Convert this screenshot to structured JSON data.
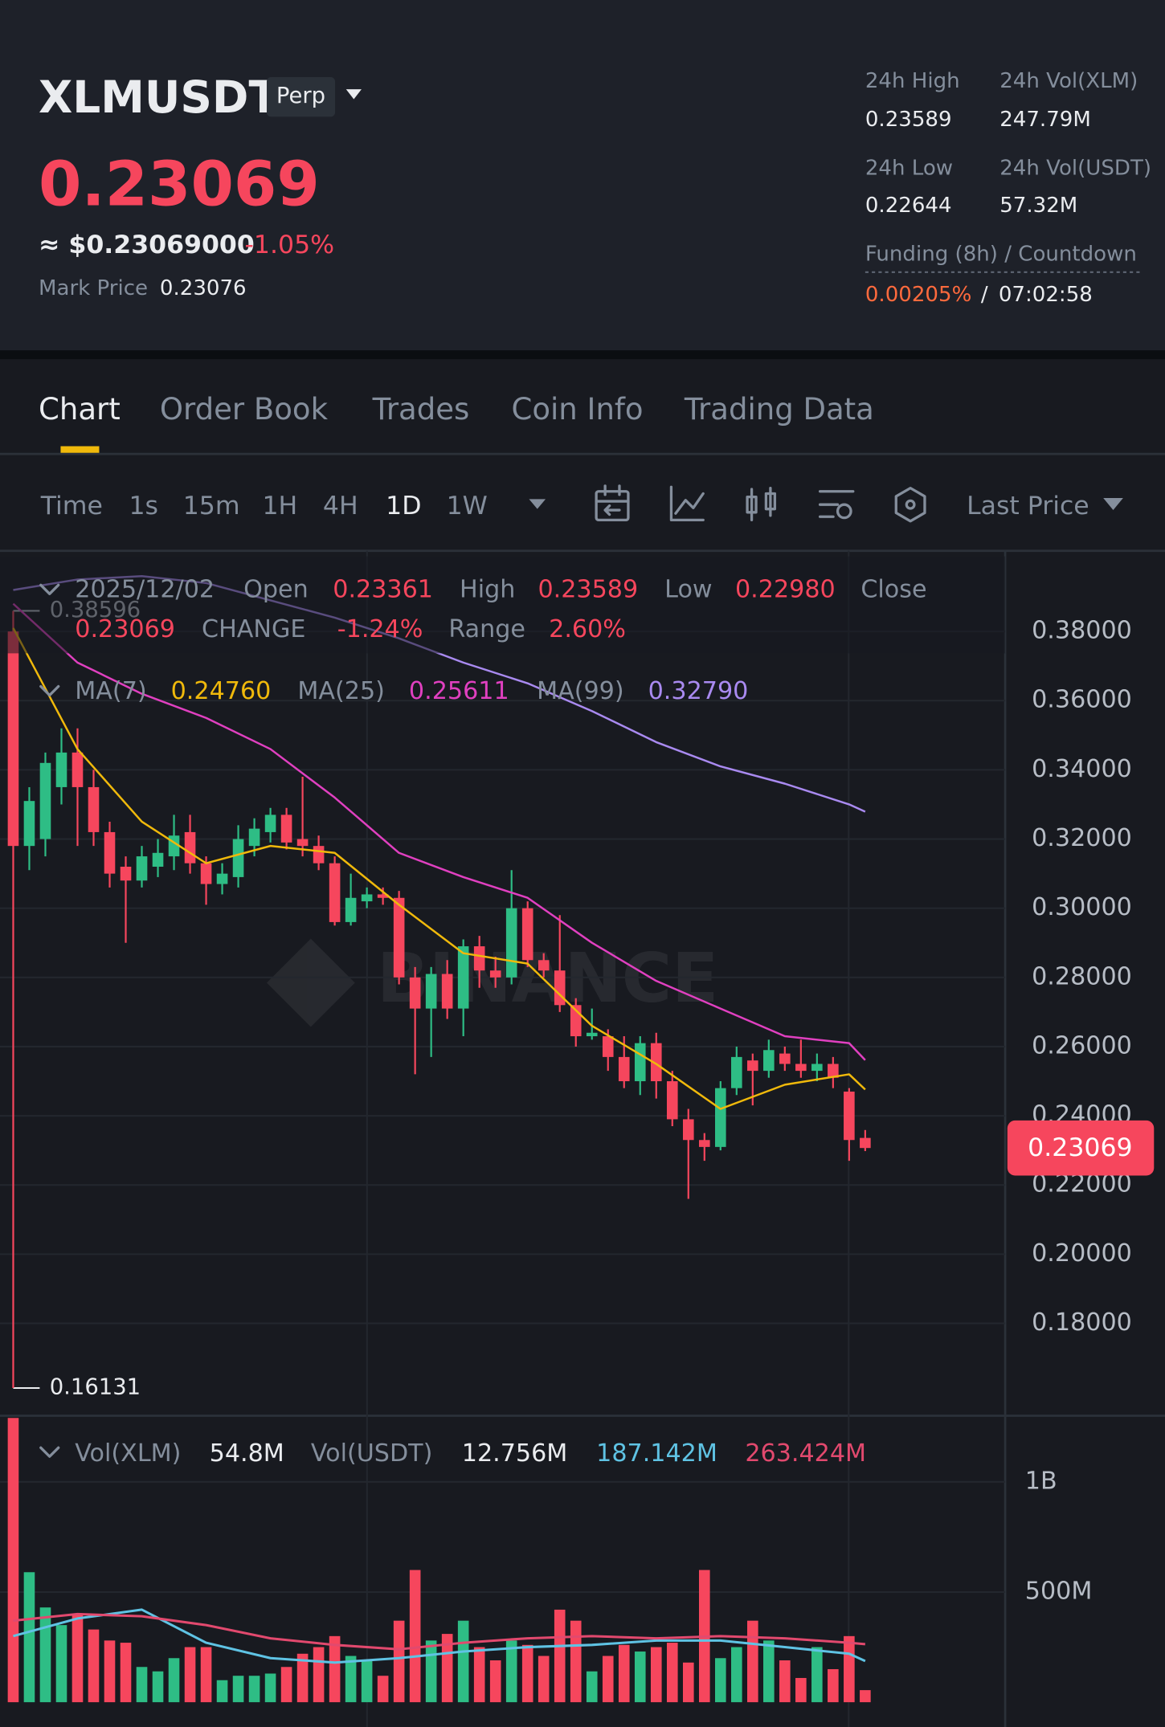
{
  "header": {
    "symbol": "XLMUSDT",
    "contract": "Perp",
    "price": "0.23069",
    "usd_price": "≈ $0.23069000",
    "change": "-1.05%",
    "mark_price_label": "Mark Price",
    "mark_price": "0.23076",
    "stats": [
      {
        "label": "24h High",
        "value": "0.23589"
      },
      {
        "label": "24h Vol(XLM)",
        "value": "247.79M"
      },
      {
        "label": "24h Low",
        "value": "0.22644"
      },
      {
        "label": "24h Vol(USDT)",
        "value": "57.32M"
      }
    ],
    "funding_label": "Funding (8h) / Countdown",
    "funding_rate": "0.00205%",
    "funding_sep": "/",
    "countdown": "07:02:58"
  },
  "tabs": [
    "Chart",
    "Order Book",
    "Trades",
    "Coin Info",
    "Trading Data"
  ],
  "toolbar": {
    "label": "Time",
    "intervals": [
      "1s",
      "15m",
      "1H",
      "4H",
      "1D",
      "1W"
    ],
    "price_type": "Last Price"
  },
  "ohlc_info": {
    "date": "2025/12/02",
    "open_label": "Open",
    "open": "0.23361",
    "high_label": "High",
    "high": "0.23589",
    "low_label": "Low",
    "low": "0.22980",
    "close_label": "Close",
    "close": "0.23069",
    "change_label": "CHANGE",
    "change": "-1.24%",
    "range_label": "Range",
    "range": "2.60%"
  },
  "watermark": "BINANCE",
  "chart_data": {
    "type": "candlestick",
    "up_color": "#2ebd85",
    "down_color": "#f6465d",
    "ylim": [
      0.1533,
      0.4017
    ],
    "yticks": [
      {
        "value": 0.38,
        "label": "0.38000"
      },
      {
        "value": 0.36,
        "label": "0.36000"
      },
      {
        "value": 0.34,
        "label": "0.34000"
      },
      {
        "value": 0.32,
        "label": "0.32000"
      },
      {
        "value": 0.3,
        "label": "0.30000"
      },
      {
        "value": 0.28,
        "label": "0.28000"
      },
      {
        "value": 0.26,
        "label": "0.26000"
      },
      {
        "value": 0.24,
        "label": "0.24000"
      },
      {
        "value": 0.22,
        "label": "0.22000"
      },
      {
        "value": 0.2,
        "label": "0.20000"
      },
      {
        "value": 0.18,
        "label": "0.18000"
      }
    ],
    "grid": true,
    "candles": [
      [
        0.38,
        0.38596,
        0.16131,
        0.318
      ],
      [
        0.318,
        0.335,
        0.311,
        0.331
      ],
      [
        0.32,
        0.345,
        0.315,
        0.342
      ],
      [
        0.335,
        0.352,
        0.33,
        0.345
      ],
      [
        0.345,
        0.352,
        0.318,
        0.335
      ],
      [
        0.335,
        0.34,
        0.318,
        0.322
      ],
      [
        0.322,
        0.325,
        0.306,
        0.31
      ],
      [
        0.312,
        0.315,
        0.29,
        0.308
      ],
      [
        0.308,
        0.318,
        0.306,
        0.315
      ],
      [
        0.312,
        0.32,
        0.309,
        0.316
      ],
      [
        0.315,
        0.327,
        0.311,
        0.321
      ],
      [
        0.322,
        0.327,
        0.31,
        0.313
      ],
      [
        0.313,
        0.315,
        0.301,
        0.307
      ],
      [
        0.307,
        0.313,
        0.304,
        0.31
      ],
      [
        0.309,
        0.324,
        0.306,
        0.32
      ],
      [
        0.318,
        0.326,
        0.315,
        0.323
      ],
      [
        0.322,
        0.329,
        0.319,
        0.327
      ],
      [
        0.327,
        0.329,
        0.317,
        0.319
      ],
      [
        0.32,
        0.338,
        0.315,
        0.318
      ],
      [
        0.318,
        0.321,
        0.311,
        0.313
      ],
      [
        0.313,
        0.315,
        0.295,
        0.296
      ],
      [
        0.296,
        0.31,
        0.295,
        0.303
      ],
      [
        0.302,
        0.306,
        0.3,
        0.304
      ],
      [
        0.304,
        0.306,
        0.301,
        0.303
      ],
      [
        0.303,
        0.305,
        0.278,
        0.28
      ],
      [
        0.28,
        0.283,
        0.252,
        0.271
      ],
      [
        0.271,
        0.283,
        0.257,
        0.281
      ],
      [
        0.281,
        0.285,
        0.268,
        0.271
      ],
      [
        0.271,
        0.291,
        0.263,
        0.289
      ],
      [
        0.289,
        0.292,
        0.277,
        0.282
      ],
      [
        0.282,
        0.286,
        0.277,
        0.28
      ],
      [
        0.28,
        0.311,
        0.278,
        0.3
      ],
      [
        0.3,
        0.302,
        0.283,
        0.285
      ],
      [
        0.285,
        0.287,
        0.28,
        0.282
      ],
      [
        0.282,
        0.298,
        0.27,
        0.272
      ],
      [
        0.272,
        0.274,
        0.26,
        0.263
      ],
      [
        0.263,
        0.271,
        0.262,
        0.264
      ],
      [
        0.263,
        0.265,
        0.253,
        0.257
      ],
      [
        0.257,
        0.263,
        0.248,
        0.25
      ],
      [
        0.25,
        0.263,
        0.246,
        0.261
      ],
      [
        0.261,
        0.264,
        0.245,
        0.25
      ],
      [
        0.25,
        0.253,
        0.237,
        0.239
      ],
      [
        0.239,
        0.242,
        0.216,
        0.233
      ],
      [
        0.233,
        0.235,
        0.227,
        0.231
      ],
      [
        0.231,
        0.25,
        0.23,
        0.248
      ],
      [
        0.248,
        0.26,
        0.246,
        0.257
      ],
      [
        0.256,
        0.258,
        0.243,
        0.253
      ],
      [
        0.253,
        0.262,
        0.251,
        0.259
      ],
      [
        0.258,
        0.26,
        0.253,
        0.255
      ],
      [
        0.255,
        0.262,
        0.251,
        0.253
      ],
      [
        0.253,
        0.258,
        0.25,
        0.255
      ],
      [
        0.255,
        0.257,
        0.248,
        0.251
      ],
      [
        0.247,
        0.248,
        0.227,
        0.233
      ],
      [
        0.23361,
        0.23589,
        0.2298,
        0.23069
      ]
    ],
    "ma_index": [
      0,
      4,
      8,
      12,
      16,
      20,
      24,
      28,
      32,
      36,
      40,
      44,
      48,
      52,
      53
    ],
    "ma_series": [
      {
        "name": "MA(7)",
        "color": "#f0b90b",
        "current_label": "0.24760",
        "values": [
          0.381,
          0.346,
          0.325,
          0.313,
          0.318,
          0.316,
          0.301,
          0.287,
          0.284,
          0.266,
          0.255,
          0.242,
          0.249,
          0.252,
          0.2476
        ]
      },
      {
        "name": "MA(25)",
        "color": "#e040c0",
        "current_label": "0.25611",
        "values": [
          0.388,
          0.371,
          0.362,
          0.355,
          0.346,
          0.332,
          0.316,
          0.309,
          0.303,
          0.29,
          0.279,
          0.271,
          0.263,
          0.261,
          0.25611
        ]
      },
      {
        "name": "MA(99)",
        "color": "#a98af0",
        "current_label": "0.32790",
        "values": [
          0.392,
          0.395,
          0.396,
          0.394,
          0.389,
          0.384,
          0.378,
          0.371,
          0.365,
          0.357,
          0.348,
          0.341,
          0.336,
          0.33,
          0.3279
        ]
      }
    ],
    "volume": {
      "name": "Vol(XLM)",
      "current_label": "54.8M",
      "quote_name": "Vol(USDT)",
      "quote_value": "12.756M",
      "ylim": [
        0,
        1300000000
      ],
      "yticks": [
        {
          "value": 1000000000,
          "label": "1B"
        },
        {
          "value": 500000000,
          "label": "500M"
        }
      ],
      "values": [
        1290000000,
        590000000,
        430000000,
        350000000,
        400000000,
        330000000,
        280000000,
        270000000,
        160000000,
        140000000,
        200000000,
        250000000,
        250000000,
        100000000,
        120000000,
        120000000,
        130000000,
        160000000,
        220000000,
        250000000,
        300000000,
        210000000,
        190000000,
        120000000,
        370000000,
        600000000,
        280000000,
        310000000,
        370000000,
        250000000,
        190000000,
        280000000,
        260000000,
        210000000,
        420000000,
        370000000,
        140000000,
        210000000,
        260000000,
        230000000,
        250000000,
        270000000,
        180000000,
        600000000,
        200000000,
        250000000,
        370000000,
        280000000,
        190000000,
        110000000,
        250000000,
        150000000,
        300000000,
        54800000
      ],
      "ma_series": [
        {
          "color": "#5fc3e4",
          "current_label": "187.142M",
          "values": [
            300000000,
            380000000,
            420000000,
            270000000,
            200000000,
            180000000,
            200000000,
            230000000,
            250000000,
            260000000,
            280000000,
            280000000,
            250000000,
            220000000,
            187142000
          ]
        },
        {
          "color": "#e2496e",
          "current_label": "263.424M",
          "values": [
            370000000,
            400000000,
            390000000,
            350000000,
            290000000,
            260000000,
            240000000,
            270000000,
            290000000,
            300000000,
            290000000,
            300000000,
            290000000,
            270000000,
            263424000
          ]
        }
      ]
    }
  }
}
